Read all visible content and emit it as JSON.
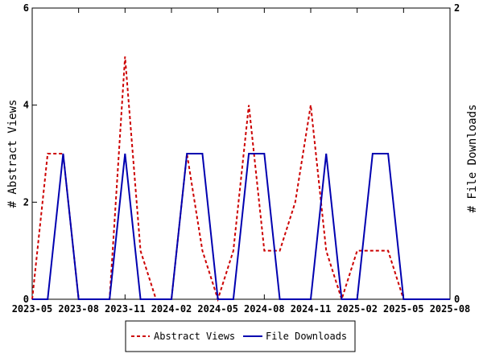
{
  "chart_data": {
    "type": "line",
    "x": [
      "2023-05",
      "2023-06",
      "2023-07",
      "2023-08",
      "2023-09",
      "2023-10",
      "2023-11",
      "2023-12",
      "2024-01",
      "2024-02",
      "2024-03",
      "2024-04",
      "2024-05",
      "2024-06",
      "2024-07",
      "2024-08",
      "2024-09",
      "2024-10",
      "2024-11",
      "2024-12",
      "2025-01",
      "2025-02",
      "2025-03",
      "2025-04",
      "2025-05",
      "2025-06",
      "2025-07",
      "2025-08"
    ],
    "x_tick_labels": [
      "2023-05",
      "2023-08",
      "2023-11",
      "2024-02",
      "2024-05",
      "2024-08",
      "2024-11",
      "2025-02",
      "2025-05",
      "2025-08"
    ],
    "series": [
      {
        "name": "Abstract Views",
        "axis": "left",
        "color": "#cc0000",
        "dash": "dashed",
        "values": [
          0,
          3,
          3,
          0,
          0,
          0,
          5,
          1,
          0,
          0,
          3,
          1,
          0,
          1,
          4,
          1,
          1,
          2,
          4,
          1,
          0,
          1,
          1,
          1,
          0,
          0,
          0,
          0
        ]
      },
      {
        "name": "File Downloads",
        "axis": "right",
        "color": "#0000b0",
        "dash": "solid",
        "values": [
          0,
          0,
          1,
          0,
          0,
          0,
          1,
          0,
          0,
          0,
          1,
          1,
          0,
          0,
          1,
          1,
          0,
          0,
          0,
          1,
          0,
          0,
          1,
          1,
          0,
          0,
          0,
          0
        ]
      }
    ],
    "ylabel_left": "# Abstract Views",
    "ylabel_right": "# File Downloads",
    "ylim_left": [
      0,
      6
    ],
    "yticks_left": [
      0,
      2,
      4,
      6
    ],
    "ylim_right": [
      0,
      2
    ],
    "yticks_right": [
      0,
      2
    ],
    "legend_position": "bottom",
    "grid": false
  }
}
